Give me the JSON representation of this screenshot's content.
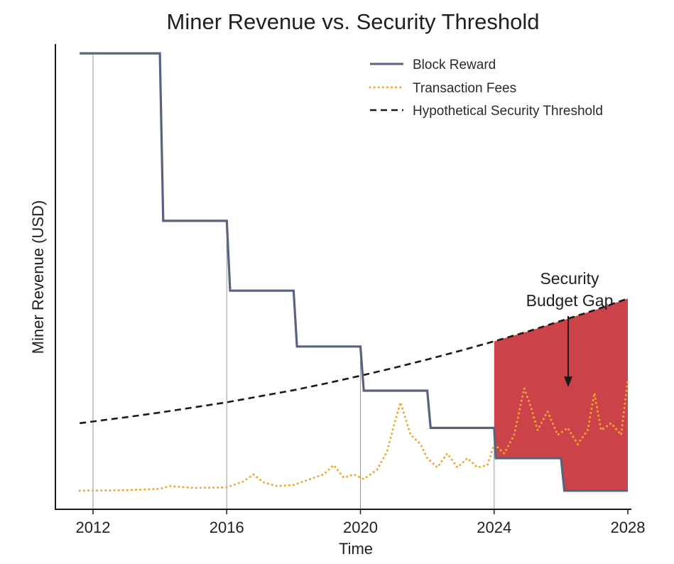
{
  "chart_data": {
    "type": "line",
    "title": "Miner Revenue vs. Security Threshold",
    "xlabel": "Time",
    "ylabel": "Miner Revenue (USD)",
    "x_ticks": [
      "2012",
      "2016",
      "2020",
      "2024",
      "2028"
    ],
    "xlim": [
      2012,
      2028
    ],
    "ylim": [
      0,
      100
    ],
    "y_ticks_shown": false,
    "grid": "vertical lines at halving dates",
    "legend_position": "top-right",
    "colors": {
      "block_reward": "#59627e",
      "transaction_fees": "#f0a830",
      "threshold": "#1a1a1a",
      "gap_fill": "#c8383f"
    },
    "series": [
      {
        "name": "Block Reward",
        "style": "solid-step",
        "points": [
          [
            2011.6,
            98
          ],
          [
            2014.0,
            98
          ],
          [
            2014.1,
            62
          ],
          [
            2016.0,
            62
          ],
          [
            2016.1,
            47
          ],
          [
            2018.0,
            47
          ],
          [
            2018.1,
            35
          ],
          [
            2020.0,
            35
          ],
          [
            2020.1,
            25.5
          ],
          [
            2022.0,
            25.5
          ],
          [
            2022.1,
            17.5
          ],
          [
            2024.0,
            17.5
          ],
          [
            2024.05,
            11
          ],
          [
            2026.0,
            11
          ],
          [
            2026.1,
            4
          ],
          [
            2028.0,
            4
          ]
        ]
      },
      {
        "name": "Transaction Fees",
        "style": "dotted",
        "points": [
          [
            2011.6,
            4
          ],
          [
            2013.0,
            4.1
          ],
          [
            2014.0,
            4.4
          ],
          [
            2014.3,
            5
          ],
          [
            2015.0,
            4.6
          ],
          [
            2016.0,
            4.7
          ],
          [
            2016.5,
            6
          ],
          [
            2016.8,
            7.5
          ],
          [
            2017.1,
            5.8
          ],
          [
            2017.5,
            5
          ],
          [
            2018.0,
            5.2
          ],
          [
            2018.5,
            6.5
          ],
          [
            2018.9,
            7.5
          ],
          [
            2019.2,
            9.5
          ],
          [
            2019.5,
            6.8
          ],
          [
            2019.8,
            7.5
          ],
          [
            2020.1,
            6.5
          ],
          [
            2020.5,
            8.5
          ],
          [
            2020.8,
            12.5
          ],
          [
            2021.0,
            18
          ],
          [
            2021.2,
            23
          ],
          [
            2021.5,
            16
          ],
          [
            2021.8,
            14
          ],
          [
            2022.0,
            11
          ],
          [
            2022.3,
            9
          ],
          [
            2022.6,
            12
          ],
          [
            2022.9,
            9
          ],
          [
            2023.2,
            11
          ],
          [
            2023.5,
            9
          ],
          [
            2023.8,
            9.5
          ],
          [
            2024.0,
            14
          ],
          [
            2024.3,
            12
          ],
          [
            2024.6,
            16
          ],
          [
            2024.9,
            26
          ],
          [
            2025.1,
            22
          ],
          [
            2025.3,
            17
          ],
          [
            2025.6,
            21
          ],
          [
            2025.9,
            16
          ],
          [
            2026.2,
            17.5
          ],
          [
            2026.5,
            14
          ],
          [
            2026.8,
            17
          ],
          [
            2027.0,
            25
          ],
          [
            2027.2,
            17
          ],
          [
            2027.5,
            18.5
          ],
          [
            2027.8,
            16
          ],
          [
            2028.0,
            28
          ]
        ]
      },
      {
        "name": "Hypothetical Security Threshold",
        "style": "dashed",
        "points": [
          [
            2011.6,
            18.5
          ],
          [
            2013,
            19.8
          ],
          [
            2014,
            20.8
          ],
          [
            2015,
            21.9
          ],
          [
            2016,
            23
          ],
          [
            2017,
            24.3
          ],
          [
            2018,
            25.6
          ],
          [
            2019,
            27.1
          ],
          [
            2020,
            28.7
          ],
          [
            2021,
            30.4
          ],
          [
            2022,
            32.2
          ],
          [
            2023,
            34.1
          ],
          [
            2024,
            36.1
          ],
          [
            2025,
            38.2
          ],
          [
            2026,
            40.5
          ],
          [
            2027,
            42.8
          ],
          [
            2028,
            45.3
          ]
        ]
      }
    ],
    "shaded_region": {
      "label_lines": [
        "Security",
        "Budget Gap"
      ],
      "x_range": [
        2024,
        2028
      ],
      "between": [
        "Hypothetical Security Threshold",
        "Block Reward"
      ]
    }
  }
}
